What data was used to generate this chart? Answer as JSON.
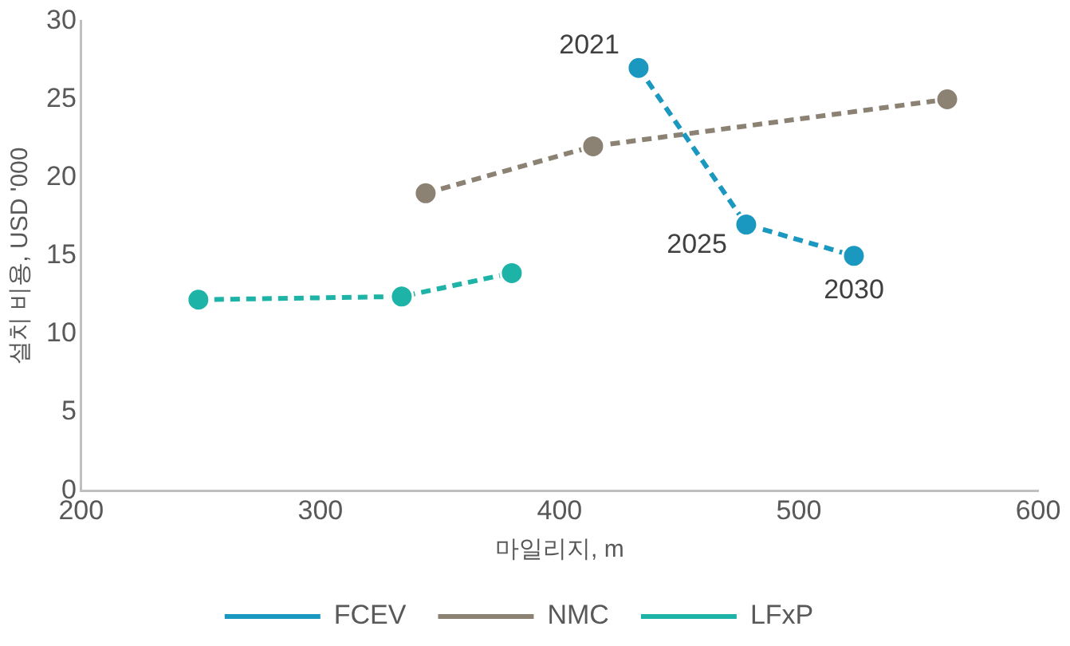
{
  "chart_data": {
    "type": "line",
    "xlabel": "마일리지, m",
    "ylabel": "설치 비용, USD '000",
    "xlim": [
      200,
      600
    ],
    "xticks": [
      200,
      300,
      400,
      500,
      600
    ],
    "ylim": [
      0,
      30
    ],
    "yticks": [
      0,
      5,
      10,
      15,
      20,
      25,
      30
    ],
    "grid": false,
    "legend": "bottom",
    "marker": "circle",
    "line_style": "dashed",
    "series": [
      {
        "name": "FCEV",
        "color": "#1b98c0",
        "x": [
          433,
          478,
          523
        ],
        "values": [
          27,
          17,
          15
        ]
      },
      {
        "name": "NMC",
        "color": "#8b8274",
        "x": [
          344,
          414,
          562
        ],
        "values": [
          19,
          22,
          25
        ]
      },
      {
        "name": "LFxP",
        "color": "#1db3a6",
        "x": [
          249,
          334,
          380
        ],
        "values": [
          12.2,
          12.4,
          13.9
        ]
      }
    ],
    "annotations": [
      {
        "text": "2021",
        "x": 433,
        "y": 27
      },
      {
        "text": "2025",
        "x": 478,
        "y": 17
      },
      {
        "text": "2030",
        "x": 523,
        "y": 15
      }
    ]
  }
}
